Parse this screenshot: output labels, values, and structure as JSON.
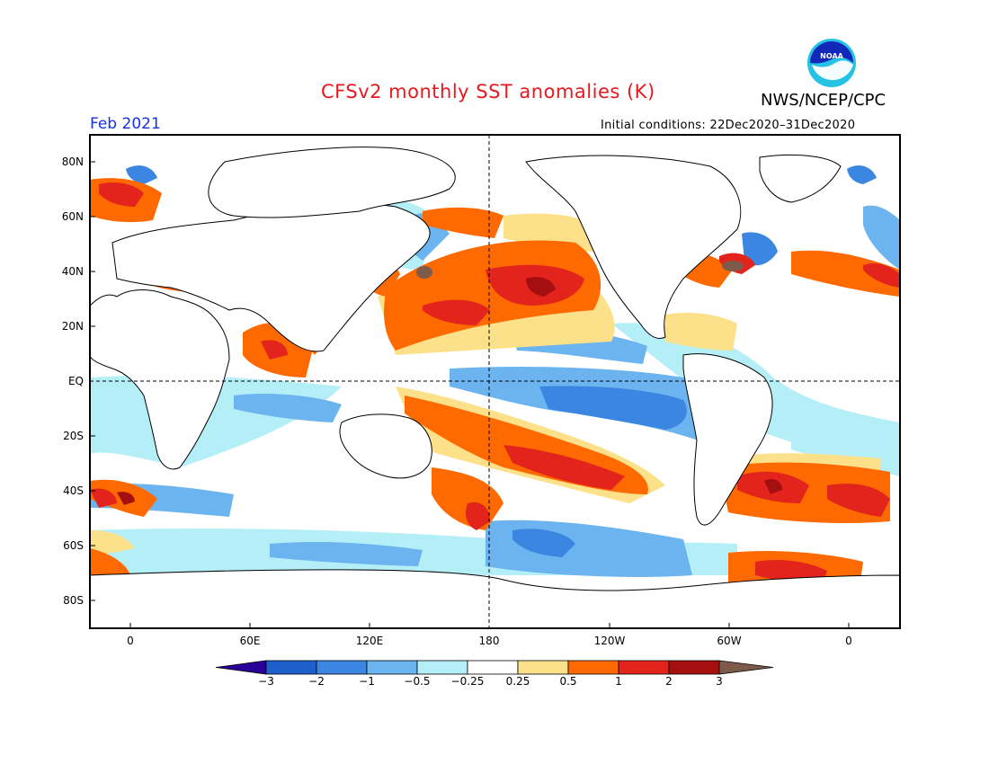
{
  "header": {
    "title": "CFSv2 monthly SST anomalies (K)",
    "agency": "NWS/NCEP/CPC",
    "logo_text": "NOAA",
    "month": "Feb 2021",
    "initial_conditions": "Initial conditions: 22Dec2020–31Dec2020"
  },
  "map": {
    "lat_labels": [
      "80N",
      "60N",
      "40N",
      "20N",
      "EQ",
      "20S",
      "40S",
      "60S",
      "80S"
    ],
    "lon_labels": [
      "0",
      "60E",
      "120E",
      "180",
      "120W",
      "60W",
      "0"
    ],
    "projection": "cylindrical equidistant, centered on 180",
    "reference_lines": [
      "equator (dashed)",
      "180 meridian (dashed)"
    ],
    "land_color": "#ffffff",
    "anomaly_regions": [
      {
        "region": "Tropical central and eastern Pacific",
        "category": "-1 to -0.5",
        "note": "La Nina cold tongue"
      },
      {
        "region": "Northwest and North Pacific",
        "category": "1 to 2"
      },
      {
        "region": "South Pacific diagonal band",
        "category": "1 to 2"
      },
      {
        "region": "Western Pacific warm pool",
        "category": "0.5 to 1"
      },
      {
        "region": "Northern Indian Ocean / Arabian Sea / Bay of Bengal",
        "category": "0.5 to 1"
      },
      {
        "region": "Western Mediterranean / North Atlantic",
        "category": "1 to 2"
      },
      {
        "region": "Gulf Stream / Northwest Atlantic",
        "category": "1 to 3"
      },
      {
        "region": "South Atlantic midlatitudes",
        "category": "1 to 2"
      },
      {
        "region": "Southern Ocean near Antarctic Peninsula",
        "category": "1 to 2"
      },
      {
        "region": "Labrador Sea",
        "category": "-1 to -2"
      },
      {
        "region": "Southern Ocean Pacific sector",
        "category": "-0.5 to -1"
      }
    ]
  },
  "colorbar": {
    "labels": [
      "−3",
      "−2",
      "−1",
      "−0.5",
      "−0.25",
      "0.25",
      "0.5",
      "1",
      "2",
      "3"
    ],
    "colors": [
      "#2a0099",
      "#1f5fcc",
      "#3a86e0",
      "#6cb4f0",
      "#b4eef6",
      "#ffffff",
      "#fde18a",
      "#ff6a00",
      "#e3241d",
      "#a50f0f",
      "#7e5a4a"
    ]
  }
}
